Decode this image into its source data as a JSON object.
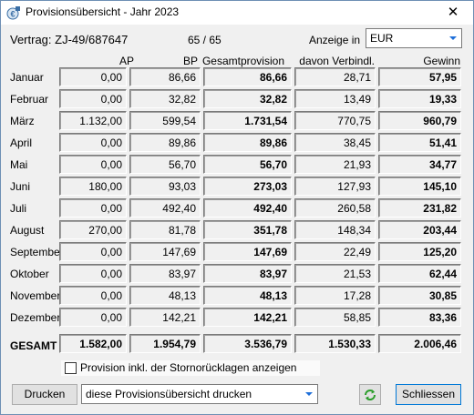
{
  "window": {
    "title": "Provisionsübersicht - Jahr 2023",
    "close_glyph": "✕"
  },
  "header": {
    "vertrag": "Vertrag: ZJ-49/687647",
    "counter": "65 / 65",
    "anzeige_label": "Anzeige in",
    "currency": "EUR"
  },
  "columns": [
    "AP",
    "BP",
    "Gesamtprovision",
    "davon Verbindl.",
    "Gewinn"
  ],
  "rows": [
    {
      "label": "Januar",
      "values": [
        "0,00",
        "86,66",
        "86,66",
        "28,71",
        "57,95"
      ]
    },
    {
      "label": "Februar",
      "values": [
        "0,00",
        "32,82",
        "32,82",
        "13,49",
        "19,33"
      ]
    },
    {
      "label": "März",
      "values": [
        "1.132,00",
        "599,54",
        "1.731,54",
        "770,75",
        "960,79"
      ]
    },
    {
      "label": "April",
      "values": [
        "0,00",
        "89,86",
        "89,86",
        "38,45",
        "51,41"
      ]
    },
    {
      "label": "Mai",
      "values": [
        "0,00",
        "56,70",
        "56,70",
        "21,93",
        "34,77"
      ]
    },
    {
      "label": "Juni",
      "values": [
        "180,00",
        "93,03",
        "273,03",
        "127,93",
        "145,10"
      ]
    },
    {
      "label": "Juli",
      "values": [
        "0,00",
        "492,40",
        "492,40",
        "260,58",
        "231,82"
      ]
    },
    {
      "label": "August",
      "values": [
        "270,00",
        "81,78",
        "351,78",
        "148,34",
        "203,44"
      ]
    },
    {
      "label": "September",
      "values": [
        "0,00",
        "147,69",
        "147,69",
        "22,49",
        "125,20"
      ]
    },
    {
      "label": "Oktober",
      "values": [
        "0,00",
        "83,97",
        "83,97",
        "21,53",
        "62,44"
      ]
    },
    {
      "label": "November",
      "values": [
        "0,00",
        "48,13",
        "48,13",
        "17,28",
        "30,85"
      ]
    },
    {
      "label": "Dezember",
      "values": [
        "0,00",
        "142,21",
        "142,21",
        "58,85",
        "83,36"
      ]
    }
  ],
  "total": {
    "label": "GESAMT",
    "values": [
      "1.582,00",
      "1.954,79",
      "3.536,79",
      "1.530,33",
      "2.006,46"
    ]
  },
  "options": {
    "checkbox_label": "Provision inkl. der Stornorücklagen anzeigen",
    "checked": false
  },
  "footer": {
    "print_button": "Drucken",
    "print_select": "diese Provisionsübersicht drucken",
    "refresh_icon": "refresh-icon",
    "close_button": "Schliessen"
  },
  "colors": {
    "accent": "#1e6fd9",
    "refresh": "#2a9d2a"
  }
}
